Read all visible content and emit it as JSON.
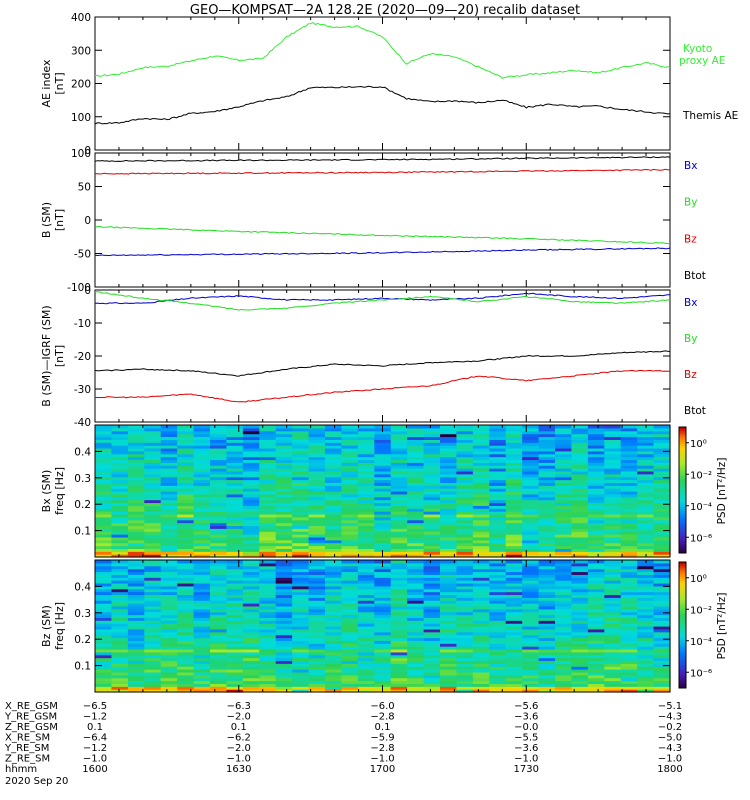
{
  "title": "GEO—KOMPSAT—2A 128.2E (2020—09—20) recalib dataset",
  "colors": {
    "black": "#000000",
    "red": "#e00000",
    "green": "#22dd22",
    "blue": "#0000cc",
    "kyoto": "#33ee33"
  },
  "time_axis": {
    "range": [
      "16:00",
      "18:00"
    ],
    "major_ticks": [
      "1600",
      "1630",
      "1700",
      "1730",
      "1800"
    ]
  },
  "ephemeris": {
    "rows": [
      {
        "label": "X_RE_GSM",
        "values": [
          "−6.5",
          "−6.3",
          "−6.0",
          "−5.6",
          "−5.1"
        ]
      },
      {
        "label": "Y_RE_GSM",
        "values": [
          "−1.2",
          "−2.0",
          "−2.8",
          "−3.6",
          "−4.3"
        ]
      },
      {
        "label": "Z_RE_GSM",
        "values": [
          "0.1",
          "0.1",
          "0.1",
          "−0.0",
          "−0.2"
        ]
      },
      {
        "label": "X_RE_SM",
        "values": [
          "−6.4",
          "−6.2",
          "−5.9",
          "−5.5",
          "−5.0"
        ]
      },
      {
        "label": "Y_RE_SM",
        "values": [
          "−1.2",
          "−2.0",
          "−2.8",
          "−3.6",
          "−4.3"
        ]
      },
      {
        "label": "Z_RE_SM",
        "values": [
          "−1.0",
          "−1.0",
          "−1.0",
          "−1.0",
          "−1.0"
        ]
      },
      {
        "label": "hhmm",
        "values": [
          "1600",
          "1630",
          "1700",
          "1730",
          "1800"
        ]
      }
    ],
    "date": "2020 Sep 20"
  },
  "chart_data": [
    {
      "id": "ae",
      "type": "line",
      "ylabel": "AE index",
      "yunit": "[nT]",
      "ylim": [
        0,
        400
      ],
      "yticks": [
        0,
        100,
        200,
        300,
        400
      ],
      "x": [
        "16:00",
        "16:05",
        "16:10",
        "16:15",
        "16:20",
        "16:25",
        "16:30",
        "16:35",
        "16:40",
        "16:45",
        "16:50",
        "16:55",
        "17:00",
        "17:05",
        "17:10",
        "17:15",
        "17:20",
        "17:25",
        "17:30",
        "17:35",
        "17:40",
        "17:45",
        "17:50",
        "17:55",
        "18:00"
      ],
      "series": [
        {
          "name": "Kyoto proxy AE",
          "legend": [
            "Kyoto",
            "proxy AE"
          ],
          "color": "#33ee33",
          "values": [
            222,
            228,
            248,
            252,
            268,
            283,
            270,
            275,
            340,
            382,
            370,
            372,
            340,
            260,
            290,
            280,
            250,
            218,
            226,
            232,
            240,
            232,
            248,
            262,
            248
          ]
        },
        {
          "name": "Themis AE",
          "legend": [
            "Themis AE"
          ],
          "color": "#000000",
          "values": [
            80,
            82,
            95,
            92,
            110,
            116,
            130,
            148,
            160,
            188,
            188,
            190,
            190,
            155,
            145,
            148,
            142,
            150,
            128,
            138,
            130,
            132,
            122,
            115,
            108
          ]
        }
      ]
    },
    {
      "id": "bsm",
      "type": "line",
      "ylabel": "B (SM)",
      "yunit": "[nT]",
      "ylim": [
        -100,
        100
      ],
      "yticks": [
        -100,
        -50,
        0,
        50,
        100
      ],
      "x": [
        "16:00",
        "16:30",
        "17:00",
        "17:30",
        "18:00"
      ],
      "series": [
        {
          "name": "Btot",
          "color": "#000000",
          "values": [
            88,
            89,
            90,
            92,
            94
          ]
        },
        {
          "name": "Bz",
          "color": "#e00000",
          "values": [
            69,
            70,
            71,
            73,
            75
          ]
        },
        {
          "name": "By",
          "color": "#22dd22",
          "values": [
            -10,
            -17,
            -23,
            -28,
            -35
          ]
        },
        {
          "name": "Bx",
          "color": "#0000cc",
          "values": [
            -53,
            -51,
            -49,
            -45,
            -42
          ]
        }
      ],
      "legend": [
        {
          "name": "Bx",
          "color": "#0000cc"
        },
        {
          "name": "By",
          "color": "#22dd22"
        },
        {
          "name": "Bz",
          "color": "#e00000"
        },
        {
          "name": "Btot",
          "color": "#000000"
        }
      ]
    },
    {
      "id": "bigrf",
      "type": "line",
      "ylabel": "B (SM)—IGRF (SM)",
      "yunit": "[nT]",
      "ylim": [
        -40,
        0
      ],
      "yticks": [
        -40,
        -30,
        -20,
        -10,
        0
      ],
      "x": [
        "16:00",
        "16:10",
        "16:20",
        "16:30",
        "16:40",
        "16:50",
        "17:00",
        "17:10",
        "17:20",
        "17:30",
        "17:40",
        "17:50",
        "18:00"
      ],
      "series": [
        {
          "name": "Bx",
          "color": "#0000cc",
          "values": [
            -4,
            -4,
            -2.5,
            -1.8,
            -3,
            -3,
            -2.5,
            -3,
            -2.5,
            -1,
            -2,
            -2.5,
            -1.5
          ]
        },
        {
          "name": "By",
          "color": "#22dd22",
          "values": [
            -0.5,
            -2.5,
            -4,
            -6,
            -5.5,
            -4,
            -3,
            -2,
            -3.5,
            -2,
            -3.5,
            -4,
            -3
          ]
        },
        {
          "name": "Btot",
          "color": "#000000",
          "values": [
            -24.5,
            -24,
            -24.5,
            -26,
            -24,
            -22.5,
            -23,
            -22,
            -21.5,
            -20,
            -20,
            -19,
            -18.5
          ]
        },
        {
          "name": "Bz",
          "color": "#e00000",
          "values": [
            -32.5,
            -32.5,
            -31.5,
            -34,
            -32.5,
            -31,
            -30,
            -29,
            -26,
            -27.5,
            -26,
            -24.5,
            -24.5
          ]
        }
      ],
      "legend": [
        {
          "name": "Bx",
          "color": "#0000cc"
        },
        {
          "name": "By",
          "color": "#22dd22"
        },
        {
          "name": "Bz",
          "color": "#e00000"
        },
        {
          "name": "Btot",
          "color": "#000000"
        }
      ]
    },
    {
      "id": "spec_bx",
      "type": "heatmap",
      "ylabel": "Bx (SM)",
      "ylabel2": "freq",
      "yunit": "[Hz]",
      "ylim": [
        0,
        0.5
      ],
      "yticks": [
        0.1,
        0.2,
        0.3,
        0.4
      ],
      "colorbar": {
        "label": "PSD [nT²/Hz]",
        "ticks": [
          "10⁰",
          "10⁻²",
          "10⁻⁴",
          "10⁻⁶"
        ],
        "log_range": [
          -7,
          1
        ]
      }
    },
    {
      "id": "spec_bz",
      "type": "heatmap",
      "ylabel": "Bz (SM)",
      "ylabel2": "freq",
      "yunit": "[Hz]",
      "ylim": [
        0,
        0.5
      ],
      "yticks": [
        0.1,
        0.2,
        0.3,
        0.4
      ],
      "colorbar": {
        "label": "PSD [nT²/Hz]",
        "ticks": [
          "10⁰",
          "10⁻²",
          "10⁻⁴",
          "10⁻⁶"
        ],
        "log_range": [
          -7,
          1
        ]
      }
    }
  ]
}
